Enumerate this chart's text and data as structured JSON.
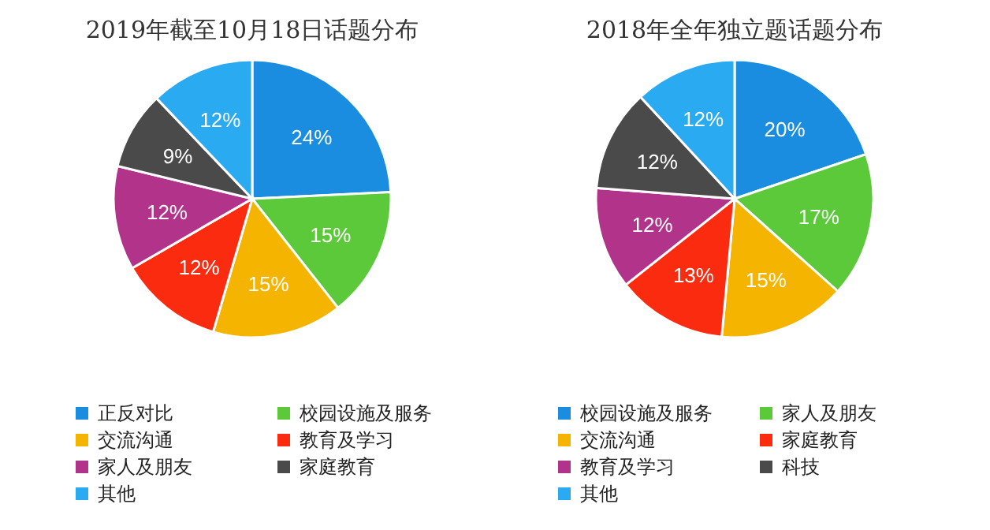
{
  "chart_data": [
    {
      "type": "pie",
      "title": "2019年截至10月18日话题分布",
      "categories": [
        "正反对比",
        "校园设施及服务",
        "交流沟通",
        "教育及学习",
        "家人及朋友",
        "家庭教育",
        "其他"
      ],
      "values": [
        24,
        15,
        15,
        12,
        12,
        9,
        12
      ],
      "value_labels": [
        "24%",
        "15%",
        "15%",
        "12%",
        "12%",
        "9%",
        "12%"
      ],
      "colors": [
        "#1a8de0",
        "#5cc93a",
        "#f5b400",
        "#fb2b10",
        "#b2348a",
        "#4a4a4a",
        "#2aaaf0"
      ],
      "legend": "bottom"
    },
    {
      "type": "pie",
      "title": "2018年全年独立题话题分布",
      "categories": [
        "校园设施及服务",
        "家人及朋友",
        "交流沟通",
        "家庭教育",
        "教育及学习",
        "科技",
        "其他"
      ],
      "values": [
        20,
        17,
        15,
        13,
        12,
        12,
        12
      ],
      "value_labels": [
        "20%",
        "17%",
        "15%",
        "13%",
        "12%",
        "12%",
        "12%"
      ],
      "colors": [
        "#1a8de0",
        "#5cc93a",
        "#f5b400",
        "#fb2b10",
        "#b2348a",
        "#4a4a4a",
        "#2aaaf0"
      ],
      "legend": "bottom"
    }
  ]
}
